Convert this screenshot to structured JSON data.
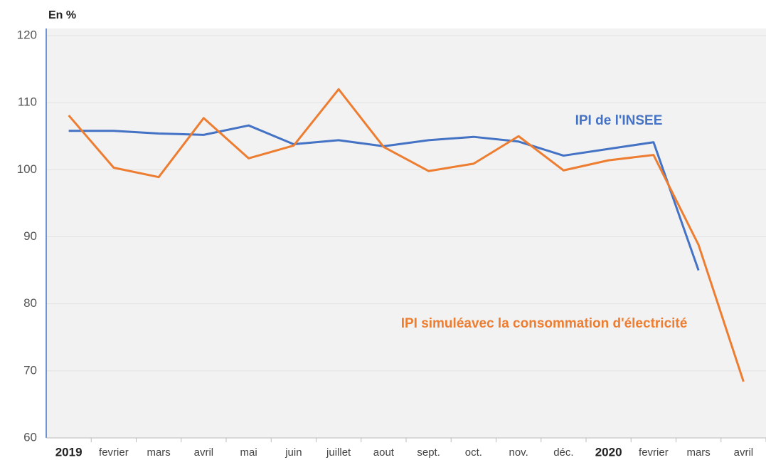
{
  "chart_data": {
    "type": "line",
    "y_axis_label": "En %",
    "categories": [
      "2019",
      "fevrier",
      "mars",
      "avril",
      "mai",
      "juin",
      "juillet",
      "aout",
      "sept.",
      "oct.",
      "nov.",
      "déc.",
      "2020",
      "fevrier",
      "mars",
      "avril"
    ],
    "series": [
      {
        "name": "IPI de l'INSEE",
        "color": "#4472c4",
        "values": [
          105.8,
          105.8,
          105.4,
          105.2,
          106.6,
          103.8,
          104.4,
          103.5,
          104.4,
          104.9,
          104.2,
          102.1,
          103.1,
          104.1,
          85,
          null
        ]
      },
      {
        "name": "IPI simuléavec la consommation d'électricité",
        "color": "#ed7d31",
        "values": [
          108.1,
          100.3,
          98.9,
          107.7,
          101.7,
          103.6,
          112,
          103.4,
          99.8,
          100.9,
          105,
          99.9,
          101.4,
          102.2,
          88.8,
          68.4
        ]
      }
    ],
    "ylim": [
      60,
      120
    ],
    "yticks": [
      60,
      70,
      80,
      90,
      100,
      110,
      120
    ],
    "grid": true
  }
}
